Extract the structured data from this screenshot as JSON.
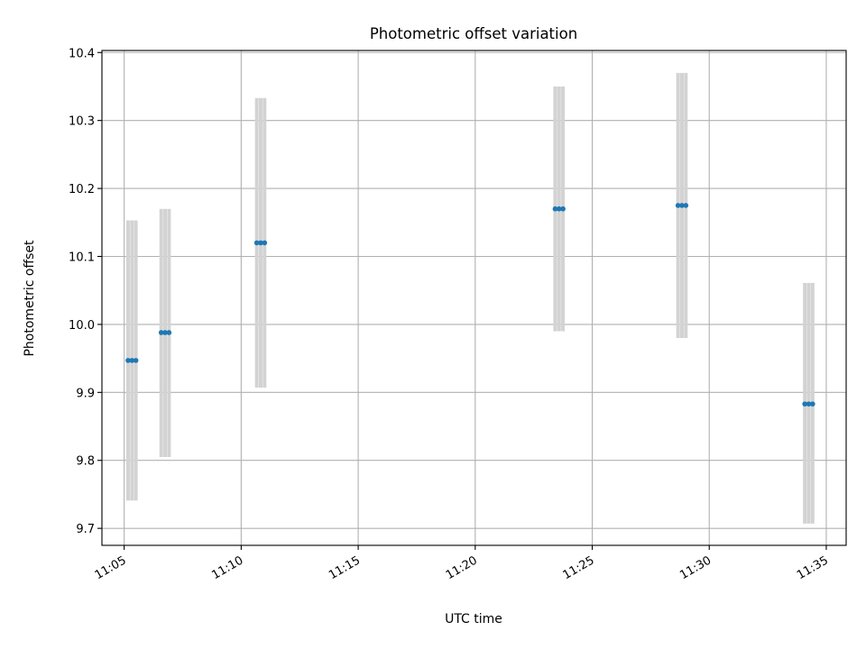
{
  "chart_data": {
    "type": "scatter",
    "title": "Photometric offset variation",
    "xlabel": "UTC time",
    "ylabel": "Photometric offset",
    "xlim": [
      "11:04:03",
      "11:35:51"
    ],
    "ylim": [
      9.675,
      10.403
    ],
    "x_tick_labels": [
      "11:05",
      "11:10",
      "11:15",
      "11:20",
      "11:25",
      "11:30",
      "11:35"
    ],
    "y_tick_labels": [
      "9.7",
      "9.8",
      "9.9",
      "10.0",
      "10.1",
      "10.2",
      "10.3",
      "10.4"
    ],
    "y_ticks": [
      9.7,
      9.8,
      9.9,
      10.0,
      10.1,
      10.2,
      10.3,
      10.4
    ],
    "grid": true,
    "marker_color": "#1f77b4",
    "errorbar_color": "#d3d3d3",
    "groups": [
      {
        "times": [
          "11:05:10",
          "11:05:20",
          "11:05:30"
        ],
        "offset": 9.947,
        "error_min": 9.741,
        "error_max": 10.153
      },
      {
        "times": [
          "11:06:35",
          "11:06:45",
          "11:06:55"
        ],
        "offset": 9.988,
        "error_min": 9.805,
        "error_max": 10.17
      },
      {
        "times": [
          "11:10:40",
          "11:10:50",
          "11:11:00"
        ],
        "offset": 10.12,
        "error_min": 9.907,
        "error_max": 10.333
      },
      {
        "times": [
          "11:23:25",
          "11:23:35",
          "11:23:45"
        ],
        "offset": 10.17,
        "error_min": 9.99,
        "error_max": 10.35
      },
      {
        "times": [
          "11:28:40",
          "11:28:50",
          "11:29:00"
        ],
        "offset": 10.175,
        "error_min": 9.98,
        "error_max": 10.37
      },
      {
        "times": [
          "11:34:05",
          "11:34:15",
          "11:34:25"
        ],
        "offset": 9.883,
        "error_min": 9.707,
        "error_max": 10.061
      }
    ]
  }
}
